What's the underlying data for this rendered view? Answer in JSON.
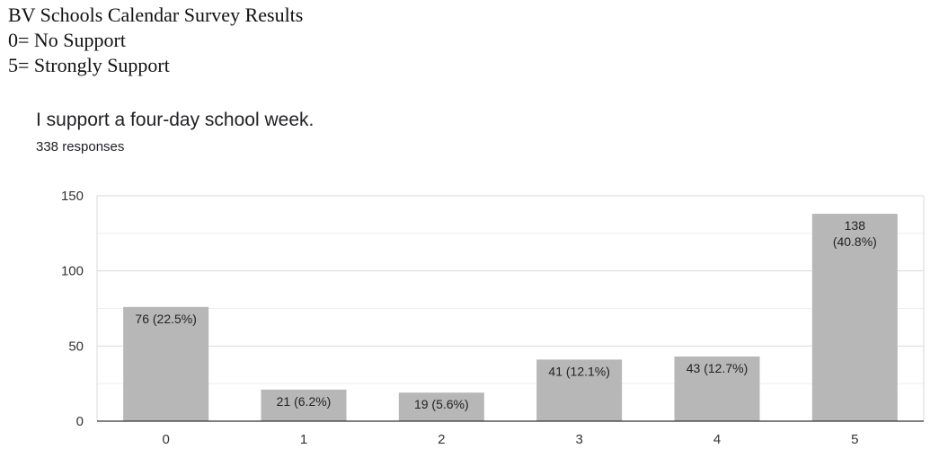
{
  "header": {
    "line1": "BV Schools Calendar Survey Results",
    "line2": "0= No Support",
    "line3": "5= Strongly Support"
  },
  "chart_data": {
    "type": "bar",
    "title": "I support a four-day school week.",
    "subtitle": "338 responses",
    "categories": [
      "0",
      "1",
      "2",
      "3",
      "4",
      "5"
    ],
    "values": [
      76,
      21,
      19,
      41,
      43,
      138
    ],
    "data_labels": [
      "76 (22.5%)",
      "21 (6.2%)",
      "19 (5.6%)",
      "41 (12.1%)",
      "43 (12.7%)",
      "138 (40.8%)"
    ],
    "percentages": [
      22.5,
      6.2,
      5.6,
      12.1,
      12.7,
      40.8
    ],
    "yticks": [
      0,
      50,
      100,
      150
    ],
    "ylim": [
      0,
      150
    ],
    "xlabel": "",
    "ylabel": "",
    "grid": true,
    "bar_color": "#b7b7b8"
  }
}
